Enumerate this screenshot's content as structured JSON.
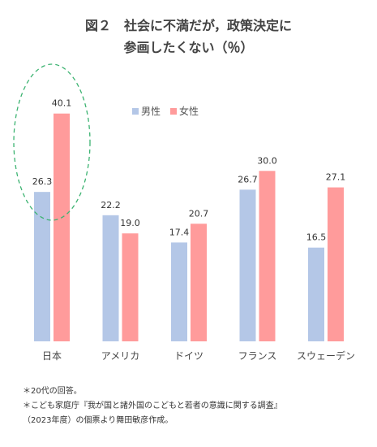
{
  "title_line1": "図２　社会に不満だが，政策決定に",
  "title_line2": "参画したくない（％）",
  "colors": {
    "male": "#b4c7e7",
    "female": "#ff9b9b",
    "highlight": "#3cb371"
  },
  "chart_data": {
    "type": "bar",
    "categories": [
      "日本",
      "アメリカ",
      "ドイツ",
      "フランス",
      "スウェーデン"
    ],
    "series": [
      {
        "name": "男性",
        "values": [
          26.3,
          22.2,
          17.4,
          26.7,
          16.5
        ]
      },
      {
        "name": "女性",
        "values": [
          40.1,
          19.0,
          20.7,
          30.0,
          27.1
        ]
      }
    ],
    "title": "図２　社会に不満だが，政策決定に参画したくない（％）",
    "xlabel": "",
    "ylabel": "",
    "ylim": [
      0,
      45
    ],
    "grid": false,
    "legend": "top-center",
    "highlight_category": "日本"
  },
  "notes": [
    "＊20代の回答。",
    "＊こども家庭庁『我が国と諸外国のこどもと若者の意識に関する調査』",
    "（2023年度）の個票より舞田敏彦作成。"
  ]
}
